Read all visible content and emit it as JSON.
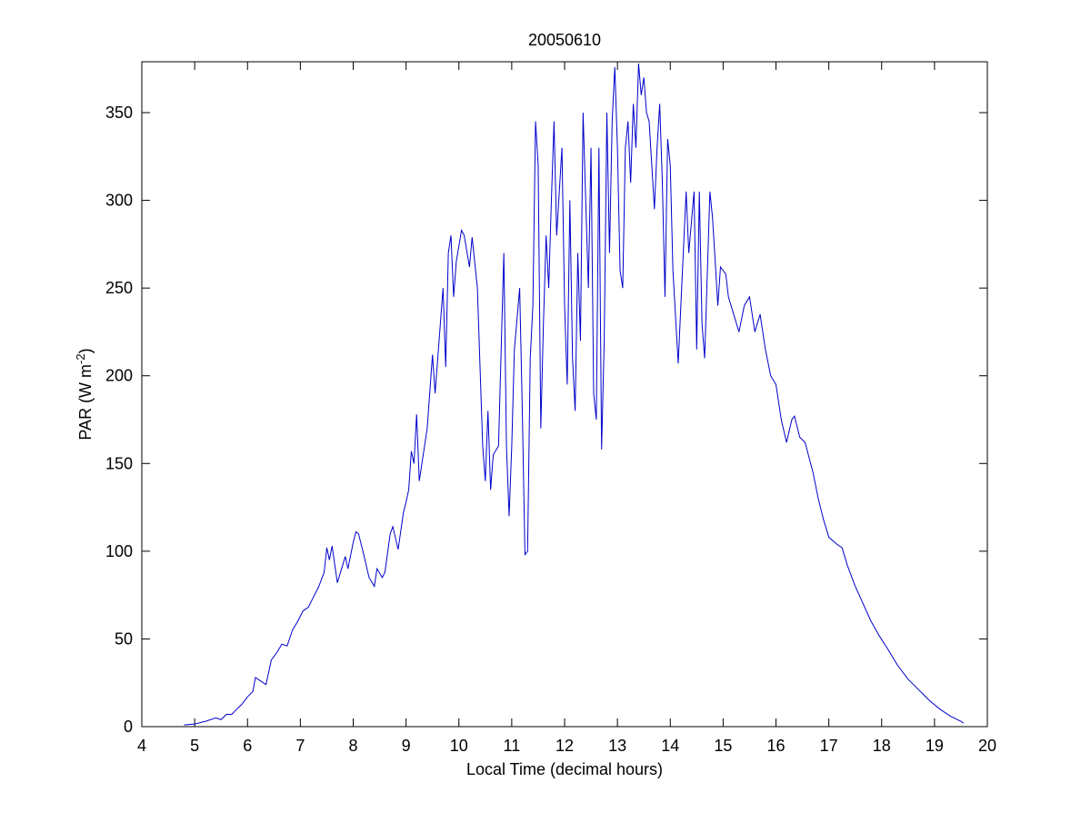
{
  "chart_data": {
    "type": "line",
    "title": "20050610",
    "xlabel": "Local Time (decimal hours)",
    "ylabel": {
      "text": "PAR (W m",
      "superscript": "-2",
      "suffix": ")"
    },
    "xlim": [
      4,
      20
    ],
    "xticks": [
      4,
      5,
      6,
      7,
      8,
      9,
      10,
      11,
      12,
      13,
      14,
      15,
      16,
      17,
      18,
      19,
      20
    ],
    "ylim": [
      0,
      379
    ],
    "yticks": [
      0,
      50,
      100,
      150,
      200,
      250,
      300,
      350
    ],
    "series": [
      {
        "color": "#0000cc",
        "x": [
          4.8,
          5.0,
          5.2,
          5.4,
          5.5,
          5.6,
          5.7,
          5.8,
          5.9,
          6.0,
          6.1,
          6.15,
          6.25,
          6.35,
          6.45,
          6.55,
          6.65,
          6.75,
          6.85,
          6.95,
          7.05,
          7.15,
          7.25,
          7.35,
          7.45,
          7.5,
          7.55,
          7.6,
          7.7,
          7.8,
          7.85,
          7.9,
          8.0,
          8.05,
          8.1,
          8.2,
          8.3,
          8.4,
          8.45,
          8.55,
          8.6,
          8.7,
          8.75,
          8.85,
          8.95,
          9.0,
          9.05,
          9.1,
          9.15,
          9.2,
          9.25,
          9.35,
          9.4,
          9.5,
          9.55,
          9.6,
          9.7,
          9.75,
          9.8,
          9.85,
          9.9,
          9.95,
          10.05,
          10.1,
          10.2,
          10.25,
          10.35,
          10.45,
          10.5,
          10.55,
          10.6,
          10.65,
          10.75,
          10.85,
          10.9,
          10.95,
          11.0,
          11.05,
          11.15,
          11.2,
          11.25,
          11.3,
          11.35,
          11.4,
          11.45,
          11.5,
          11.55,
          11.6,
          11.65,
          11.7,
          11.75,
          11.8,
          11.85,
          11.95,
          12.0,
          12.05,
          12.1,
          12.15,
          12.2,
          12.25,
          12.3,
          12.35,
          12.4,
          12.45,
          12.5,
          12.55,
          12.6,
          12.65,
          12.7,
          12.75,
          12.8,
          12.85,
          12.9,
          12.95,
          13.0,
          13.05,
          13.1,
          13.15,
          13.2,
          13.25,
          13.3,
          13.35,
          13.4,
          13.45,
          13.5,
          13.55,
          13.6,
          13.65,
          13.7,
          13.75,
          13.8,
          13.85,
          13.9,
          13.95,
          14.0,
          14.05,
          14.15,
          14.2,
          14.3,
          14.35,
          14.45,
          14.5,
          14.55,
          14.6,
          14.65,
          14.75,
          14.8,
          14.9,
          14.95,
          15.05,
          15.1,
          15.2,
          15.3,
          15.4,
          15.5,
          15.6,
          15.7,
          15.8,
          15.9,
          16.0,
          16.1,
          16.2,
          16.3,
          16.35,
          16.45,
          16.55,
          16.7,
          16.8,
          16.9,
          17.0,
          17.15,
          17.25,
          17.35,
          17.5,
          17.65,
          17.8,
          17.95,
          18.1,
          18.3,
          18.5,
          18.7,
          18.9,
          19.1,
          19.3,
          19.5,
          19.55
        ],
        "values": [
          1,
          1.5,
          3,
          5,
          4,
          7,
          7,
          10,
          13,
          17,
          20,
          28,
          26,
          24,
          38,
          42,
          47,
          46,
          55,
          60,
          66,
          68,
          74,
          80,
          88,
          102,
          95,
          103,
          82,
          92,
          97,
          90,
          105,
          111,
          110,
          98,
          85,
          80,
          90,
          85,
          88,
          110,
          114,
          101,
          122,
          128,
          135,
          157,
          150,
          178,
          140,
          160,
          170,
          212,
          190,
          210,
          250,
          205,
          270,
          280,
          245,
          265,
          283,
          280,
          262,
          279,
          250,
          160,
          140,
          180,
          135,
          155,
          160,
          270,
          160,
          120,
          160,
          215,
          250,
          180,
          98,
          100,
          210,
          240,
          345,
          320,
          170,
          230,
          280,
          250,
          300,
          345,
          280,
          330,
          240,
          195,
          300,
          210,
          180,
          270,
          220,
          350,
          300,
          250,
          330,
          190,
          175,
          330,
          158,
          220,
          350,
          270,
          345,
          376,
          330,
          260,
          250,
          330,
          345,
          310,
          355,
          330,
          378,
          360,
          370,
          350,
          345,
          320,
          295,
          330,
          355,
          310,
          245,
          335,
          320,
          260,
          207,
          240,
          305,
          270,
          305,
          215,
          305,
          230,
          210,
          305,
          290,
          240,
          262,
          258,
          245,
          235,
          225,
          240,
          245,
          225,
          235,
          215,
          200,
          195,
          175,
          162,
          175,
          177,
          165,
          162,
          145,
          130,
          118,
          108,
          104,
          102,
          92,
          80,
          70,
          60,
          52,
          45,
          35,
          27,
          21,
          15,
          10,
          6,
          3,
          2
        ]
      }
    ]
  }
}
